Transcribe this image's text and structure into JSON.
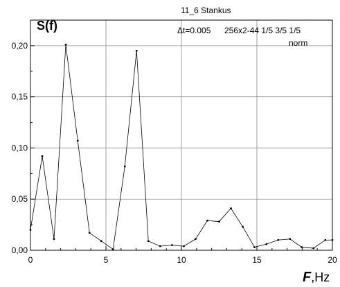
{
  "chart_data": {
    "type": "line",
    "ylabel": "S(f)",
    "xlabel": {
      "symbol": "F",
      "unit": ",Hz"
    },
    "annotations": [
      "11_6 Stankus",
      "Δt=0.005",
      "256x2-44 1/5 3/5 1/5",
      "norm"
    ],
    "xlim": [
      0,
      20
    ],
    "ylim": [
      0,
      0.225
    ],
    "xticks": [
      0,
      5,
      10,
      15,
      20
    ],
    "xtick_labels": [
      "0",
      "5",
      "10",
      "15",
      "20"
    ],
    "yticks": [
      0,
      0.05,
      0.1,
      0.15,
      0.2
    ],
    "ytick_labels": [
      "0,00",
      "0,05",
      "0,10",
      "0,15",
      "0,20"
    ],
    "grid": true,
    "series": [
      {
        "x": [
          0,
          0.78,
          1.56,
          2.34,
          3.13,
          3.91,
          4.69,
          5.47,
          6.25,
          7.03,
          7.81,
          8.59,
          9.38,
          10.16,
          10.94,
          11.72,
          12.5,
          13.28,
          14.06,
          14.84,
          15.63,
          16.41,
          17.19,
          17.97,
          18.75,
          19.53,
          20.0
        ],
        "y": [
          0.02,
          0.092,
          0.011,
          0.201,
          0.107,
          0.017,
          0.009,
          0.001,
          0.082,
          0.195,
          0.009,
          0.004,
          0.005,
          0.004,
          0.011,
          0.029,
          0.028,
          0.041,
          0.023,
          0.003,
          0.006,
          0.01,
          0.011,
          0.003,
          0.002,
          0.01,
          0.01
        ]
      }
    ]
  }
}
